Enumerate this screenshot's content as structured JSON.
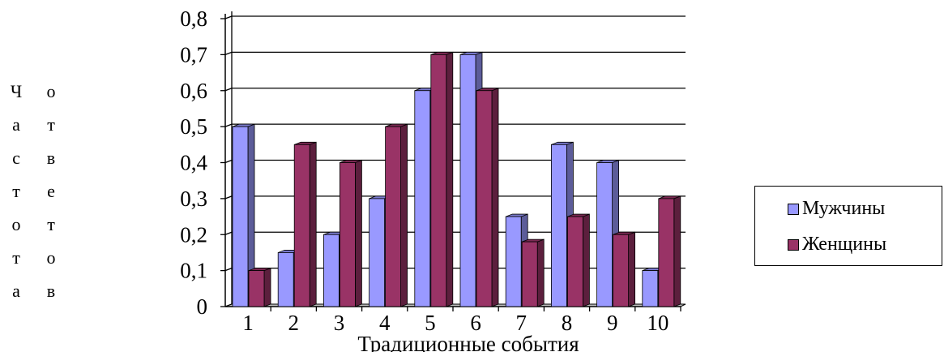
{
  "chart_data": {
    "type": "bar",
    "title": "",
    "xlabel": "Традиционные события",
    "ylabel_col1": [
      "Ч",
      "а",
      "с",
      "т",
      "о",
      "т",
      "а"
    ],
    "ylabel_col2": [
      "о",
      "т",
      "в",
      "е",
      "т",
      "о",
      "в"
    ],
    "categories": [
      "1",
      "2",
      "3",
      "4",
      "5",
      "6",
      "7",
      "8",
      "9",
      "10"
    ],
    "ylim": [
      0,
      0.8
    ],
    "yticks": [
      "0",
      "0,1",
      "0,2",
      "0,3",
      "0,4",
      "0,5",
      "0,6",
      "0,7",
      "0,8"
    ],
    "grid": true,
    "legend_position": "right",
    "series": [
      {
        "name": "Мужчины",
        "color": "#9999ff",
        "values": [
          0.5,
          0.15,
          0.2,
          0.3,
          0.6,
          0.7,
          0.25,
          0.45,
          0.4,
          0.1
        ]
      },
      {
        "name": "Женщины",
        "color": "#993366",
        "values": [
          0.1,
          0.45,
          0.4,
          0.5,
          0.7,
          0.6,
          0.18,
          0.25,
          0.2,
          0.3
        ]
      }
    ]
  }
}
